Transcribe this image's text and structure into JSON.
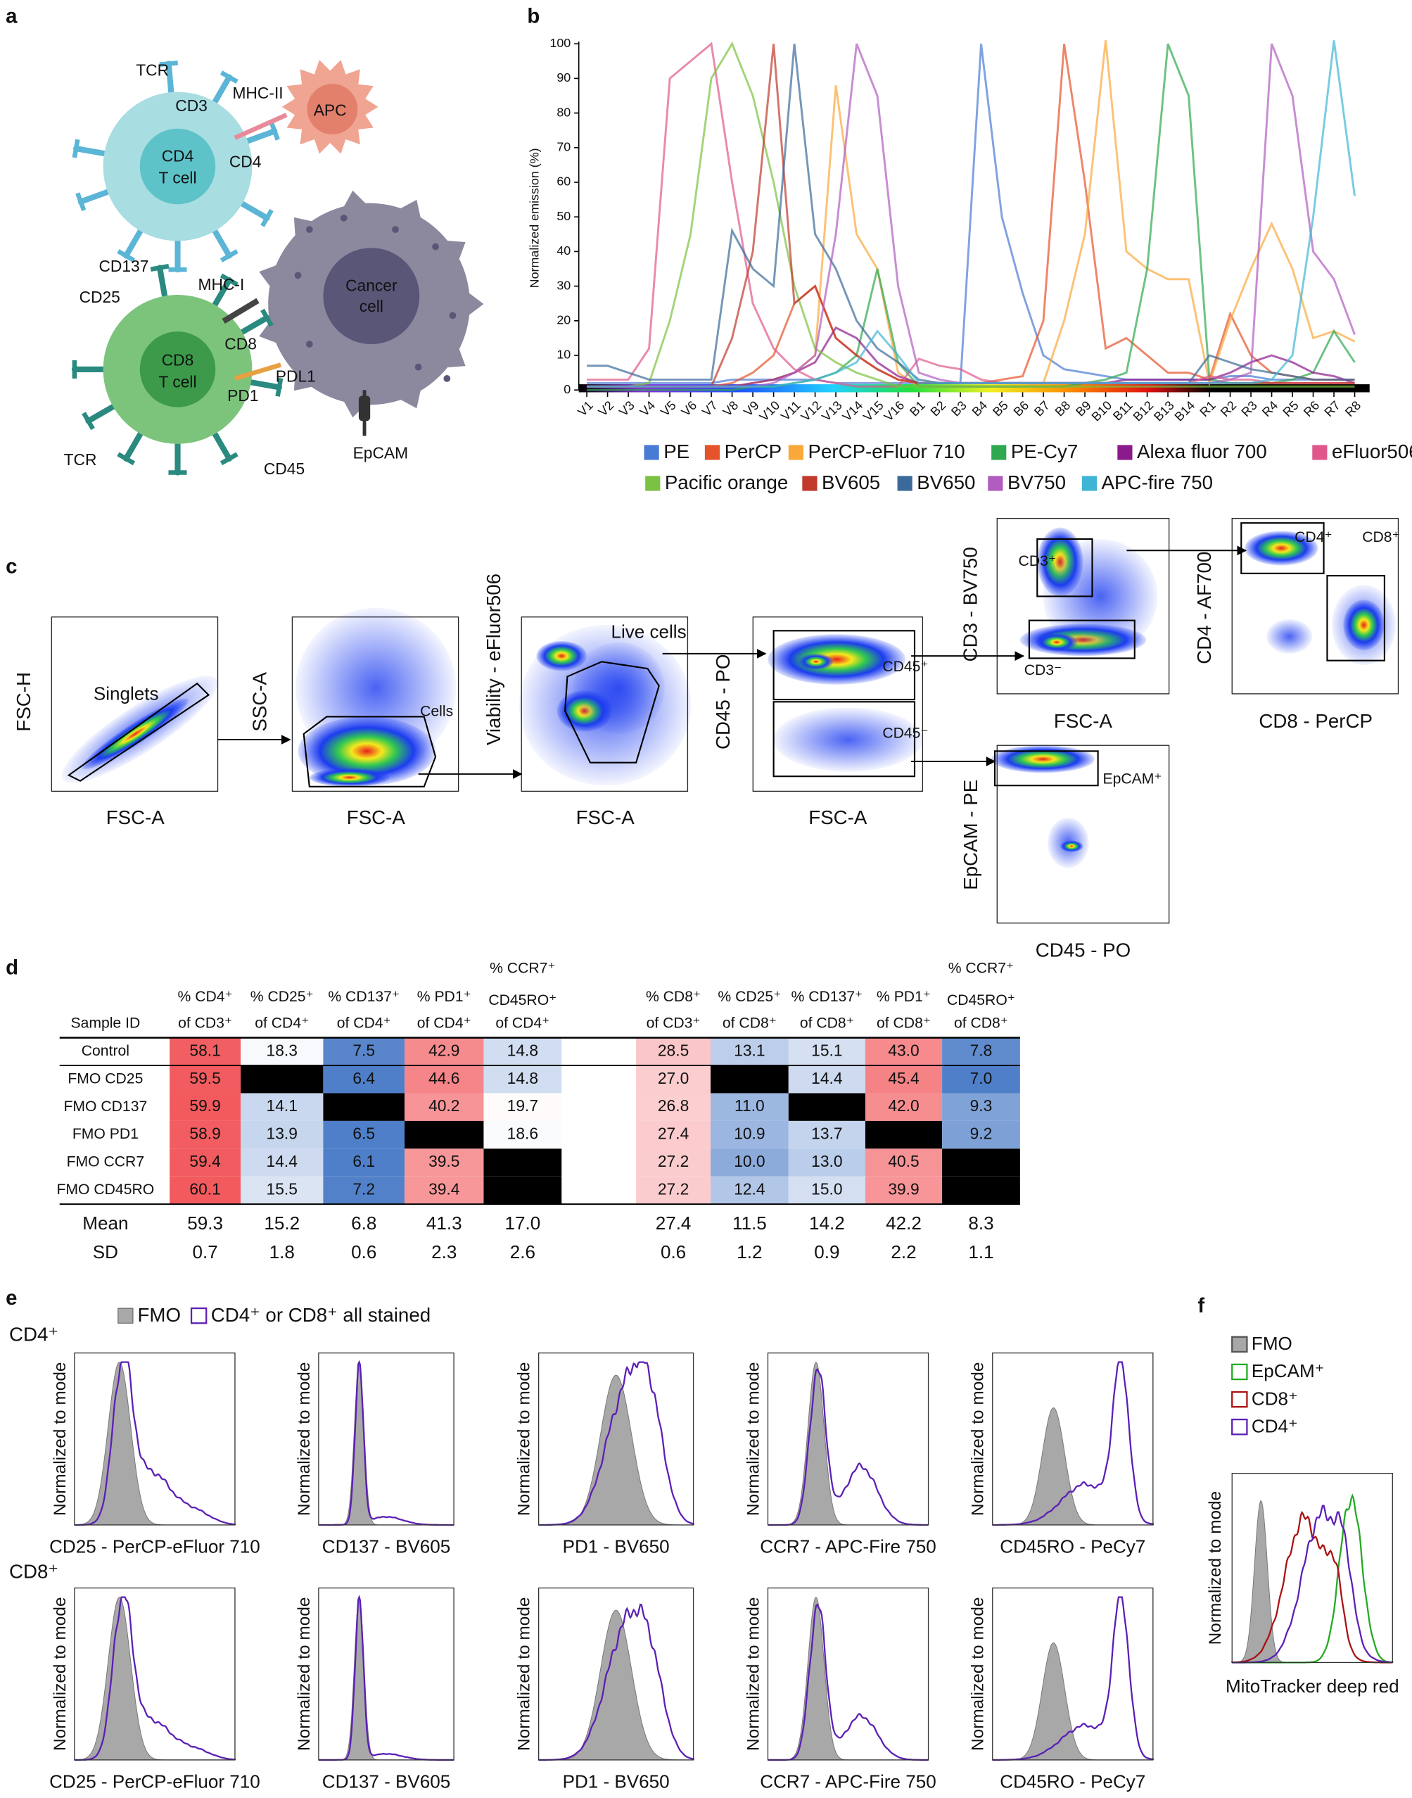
{
  "panel_labels": [
    "a",
    "b",
    "c",
    "d",
    "e",
    "f"
  ],
  "diagram": {
    "labels": [
      "TCR",
      "CD3",
      "MHC-II",
      "APC",
      "CD4",
      "T cell",
      "CD4",
      "CD137",
      "Cancer",
      "cell",
      "CD25",
      "MHC-I",
      "CD8",
      "T cell",
      "CD8",
      "PD1",
      "PDL1",
      "TCR",
      "CD45",
      "EpCAM"
    ]
  },
  "chart_data": {
    "type": "line",
    "y_label": "Normalized emission (%)",
    "categories": [
      "V1",
      "V2",
      "V3",
      "V4",
      "V5",
      "V6",
      "V7",
      "V8",
      "V9",
      "V10",
      "V11",
      "V12",
      "V13",
      "V14",
      "V15",
      "V16",
      "B1",
      "B2",
      "B3",
      "B4",
      "B5",
      "B6",
      "B7",
      "B8",
      "B9",
      "B10",
      "B11",
      "B12",
      "B13",
      "B14",
      "R1",
      "R2",
      "R3",
      "R4",
      "R5",
      "R6",
      "R7",
      "R8"
    ],
    "ylim": [
      0,
      100
    ],
    "yticks": [
      0,
      10,
      20,
      30,
      40,
      50,
      60,
      70,
      80,
      90,
      100
    ],
    "series": [
      {
        "name": "PE",
        "color": "#4a7bd4",
        "values": [
          2,
          2,
          2,
          2,
          2,
          2,
          2,
          3,
          3,
          3,
          3,
          3,
          2,
          2,
          2,
          2,
          2,
          2,
          2,
          100,
          50,
          28,
          10,
          6,
          5,
          4,
          3,
          3,
          3,
          3,
          3,
          4,
          4,
          3,
          3,
          3,
          3,
          3
        ]
      },
      {
        "name": "PerCP",
        "color": "#e5532a",
        "values": [
          1,
          1,
          1,
          1,
          1,
          1,
          1,
          2,
          5,
          10,
          25,
          30,
          15,
          10,
          6,
          3,
          2,
          2,
          2,
          2,
          3,
          4,
          20,
          100,
          60,
          12,
          15,
          10,
          5,
          5,
          3,
          22,
          10,
          5,
          4,
          3,
          3,
          3
        ]
      },
      {
        "name": "PerCP-eFluor 710",
        "color": "#f9a83a",
        "values": [
          1,
          1,
          1,
          1,
          1,
          1,
          1,
          1,
          2,
          3,
          5,
          10,
          88,
          45,
          35,
          5,
          1,
          1,
          1,
          1,
          1,
          1,
          2,
          20,
          45,
          101,
          40,
          35,
          32,
          32,
          2,
          20,
          35,
          48,
          35,
          15,
          17,
          14
        ]
      },
      {
        "name": "PE-Cy7",
        "color": "#2fa84f",
        "values": [
          0,
          0,
          0,
          0,
          0,
          0,
          0,
          0,
          1,
          1,
          2,
          3,
          5,
          10,
          35,
          8,
          1,
          1,
          1,
          1,
          1,
          1,
          1,
          1,
          2,
          3,
          5,
          35,
          100,
          85,
          3,
          2,
          2,
          2,
          3,
          5,
          17,
          8
        ]
      },
      {
        "name": "Alexa fluor 700",
        "color": "#8b1a8b",
        "values": [
          1,
          1,
          1,
          1,
          1,
          1,
          1,
          1,
          2,
          3,
          5,
          8,
          18,
          15,
          8,
          4,
          2,
          2,
          2,
          2,
          2,
          2,
          2,
          2,
          2,
          2,
          3,
          3,
          3,
          3,
          3,
          5,
          8,
          10,
          8,
          5,
          4,
          2
        ]
      },
      {
        "name": "eFluor506",
        "color": "#e0588a",
        "values": [
          3,
          3,
          3,
          12,
          90,
          95,
          100,
          60,
          25,
          12,
          6,
          3,
          2,
          1,
          1,
          1,
          9,
          7,
          6,
          3,
          2,
          2,
          2,
          2,
          2,
          2,
          2,
          2,
          2,
          2,
          4,
          3,
          3,
          2,
          2,
          2,
          2,
          2
        ]
      },
      {
        "name": "Pacific orange",
        "color": "#7cc242",
        "values": [
          1,
          1,
          1,
          2,
          20,
          45,
          90,
          100,
          85,
          60,
          30,
          12,
          8,
          5,
          3,
          1,
          1,
          1,
          1,
          1,
          1,
          1,
          1,
          1,
          1,
          1,
          1,
          1,
          1,
          1,
          1,
          1,
          1,
          1,
          1,
          1,
          1,
          1
        ]
      },
      {
        "name": "BV605",
        "color": "#c0392b",
        "values": [
          1,
          1,
          1,
          1,
          1,
          1,
          1,
          15,
          40,
          100,
          25,
          30,
          15,
          10,
          6,
          3,
          2,
          2,
          2,
          2,
          2,
          2,
          2,
          2,
          2,
          2,
          2,
          2,
          2,
          2,
          2,
          2,
          2,
          2,
          2,
          2,
          2,
          2
        ]
      },
      {
        "name": "BV650",
        "color": "#3b6a9a",
        "values": [
          7,
          7,
          5,
          3,
          3,
          3,
          3,
          46,
          35,
          30,
          100,
          45,
          35,
          20,
          12,
          8,
          3,
          2,
          2,
          2,
          2,
          2,
          2,
          2,
          2,
          2,
          2,
          2,
          2,
          2,
          10,
          8,
          6,
          5,
          4,
          3,
          3,
          3
        ]
      },
      {
        "name": "BV750",
        "color": "#b05dbf",
        "values": [
          1,
          1,
          1,
          1,
          1,
          1,
          1,
          1,
          1,
          2,
          5,
          10,
          45,
          100,
          85,
          30,
          5,
          3,
          2,
          2,
          2,
          2,
          2,
          2,
          2,
          2,
          2,
          2,
          2,
          2,
          2,
          3,
          5,
          100,
          85,
          40,
          32,
          16
        ]
      },
      {
        "name": "APC-fire 750",
        "color": "#3fb5d6",
        "values": [
          1,
          1,
          1,
          1,
          1,
          1,
          1,
          1,
          1,
          1,
          2,
          3,
          5,
          8,
          17,
          10,
          2,
          2,
          2,
          2,
          2,
          2,
          2,
          2,
          2,
          2,
          2,
          2,
          2,
          2,
          2,
          2,
          2,
          3,
          10,
          50,
          101,
          56
        ]
      }
    ]
  },
  "gating": {
    "labels": [
      "Singlets",
      "FSC-H",
      "FSC-A",
      "SSC-A",
      "Cells",
      "FSC-A",
      "Viability - eFluor506",
      "Live cells",
      "FSC-A",
      "CD45 - PO",
      "CD45⁺",
      "CD45⁻",
      "FSC-A",
      "CD3 - BV750",
      "CD3⁺",
      "CD3⁻",
      "FSC-A",
      "CD4 - AF700",
      "CD4⁺",
      "CD8⁺",
      "CD8 - PerCP",
      "EpCAM - PE",
      "EpCAM⁺",
      "CD45 - PO"
    ]
  },
  "table": {
    "sample_id_header": "Sample ID",
    "headers": [
      [
        "% CD4⁺",
        "of CD3⁺"
      ],
      [
        "% CD25⁺",
        "of CD4⁺"
      ],
      [
        "% CD137⁺",
        "of CD4⁺"
      ],
      [
        "% PD1⁺",
        "of CD4⁺"
      ],
      [
        "% CCR7⁺",
        "CD45RO⁺",
        "of CD4⁺"
      ],
      [
        "% CD8⁺",
        "of CD3⁺"
      ],
      [
        "% CD25⁺",
        "of CD8⁺"
      ],
      [
        "% CD137⁺",
        "of CD8⁺"
      ],
      [
        "% PD1⁺",
        "of CD8⁺"
      ],
      [
        "% CCR7⁺",
        "CD45RO⁺",
        "of CD8⁺"
      ]
    ],
    "rows": [
      {
        "label": "Control",
        "cells": [
          "58.1",
          "18.3",
          "7.5",
          "42.9",
          "14.8",
          "28.5",
          "13.1",
          "15.1",
          "43.0",
          "7.8"
        ]
      },
      {
        "label": "FMO CD25",
        "cells": [
          "59.5",
          null,
          "6.4",
          "44.6",
          "14.8",
          "27.0",
          null,
          "14.4",
          "45.4",
          "7.0"
        ]
      },
      {
        "label": "FMO CD137",
        "cells": [
          "59.9",
          "14.1",
          null,
          "40.2",
          "19.7",
          "26.8",
          "11.0",
          null,
          "42.0",
          "9.3"
        ]
      },
      {
        "label": "FMO PD1",
        "cells": [
          "58.9",
          "13.9",
          "6.5",
          null,
          "18.6",
          "27.4",
          "10.9",
          "13.7",
          null,
          "9.2"
        ]
      },
      {
        "label": "FMO CCR7",
        "cells": [
          "59.4",
          "14.4",
          "6.1",
          "39.5",
          null,
          "27.2",
          "10.0",
          "13.0",
          "40.5",
          null
        ]
      },
      {
        "label": "FMO CD45RO",
        "cells": [
          "60.1",
          "15.5",
          "7.2",
          "39.4",
          null,
          "27.2",
          "12.4",
          "15.0",
          "39.9",
          null
        ]
      }
    ],
    "summary": [
      {
        "label": "Mean",
        "cells": [
          "59.3",
          "15.2",
          "6.8",
          "41.3",
          "17.0",
          "27.4",
          "11.5",
          "14.2",
          "42.2",
          "8.3"
        ]
      },
      {
        "label": "SD",
        "cells": [
          "0.7",
          "1.8",
          "0.6",
          "2.3",
          "2.6",
          "0.6",
          "1.2",
          "0.9",
          "2.2",
          "1.1"
        ]
      }
    ],
    "color_scale": {
      "low": "#4f7fc8",
      "mid": "#ffffff",
      "high": "#f25a5e",
      "missing": "#000000"
    }
  },
  "histograms": {
    "legend": [
      "FMO",
      "CD4⁺ or CD8⁺ all stained"
    ],
    "row_labels": [
      "CD4⁺",
      "CD8⁺"
    ],
    "y_label": "Normalized to mode",
    "x_labels": [
      "CD25 - PerCP-eFluor 710",
      "CD137 - BV605",
      "PD1 - BV650",
      "CCR7 - APC-Fire 750",
      "CD45RO - PeCy7"
    ]
  },
  "mitotracker": {
    "legend": [
      "FMO",
      "EpCAM⁺",
      "CD8⁺",
      "CD4⁺"
    ],
    "y_label": "Normalized to mode",
    "x_label": "MitoTracker deep red"
  }
}
